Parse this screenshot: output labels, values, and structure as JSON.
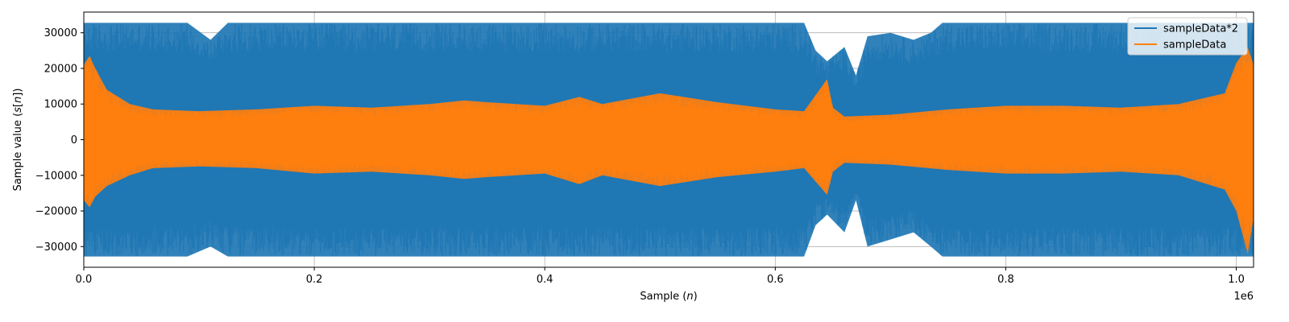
{
  "chart_data": {
    "type": "line",
    "title": "",
    "xlabel_parts": [
      "Sample (",
      "n",
      ")"
    ],
    "ylabel_parts": [
      "Sample value (",
      "s",
      "[",
      "n",
      "])"
    ],
    "x_offset_label": "1e6",
    "xlim": [
      0,
      1015000
    ],
    "ylim": [
      -35800,
      35800
    ],
    "x_ticks": [
      {
        "value": 0,
        "label": "0.0"
      },
      {
        "value": 200000,
        "label": "0.2"
      },
      {
        "value": 400000,
        "label": "0.4"
      },
      {
        "value": 600000,
        "label": "0.6"
      },
      {
        "value": 800000,
        "label": "0.8"
      },
      {
        "value": 1000000,
        "label": "1.0"
      }
    ],
    "y_ticks": [
      {
        "value": 30000,
        "label": "30000"
      },
      {
        "value": 20000,
        "label": "20000"
      },
      {
        "value": 10000,
        "label": "10000"
      },
      {
        "value": 0,
        "label": "0"
      },
      {
        "value": -10000,
        "label": "−10000"
      },
      {
        "value": -20000,
        "label": "−20000"
      },
      {
        "value": -30000,
        "label": "−30000"
      }
    ],
    "grid": true,
    "legend_position": "top-right",
    "series": [
      {
        "name": "sampleData*2",
        "color": "#1f77b4",
        "envelope": {
          "x": [
            0,
            20000,
            60000,
            90000,
            110000,
            125000,
            150000,
            200000,
            260000,
            300000,
            330000,
            370000,
            400000,
            450000,
            500000,
            550000,
            600000,
            625000,
            635000,
            645000,
            660000,
            670000,
            680000,
            700000,
            720000,
            735000,
            745000,
            760000,
            800000,
            850000,
            900000,
            950000,
            1000000,
            1015000
          ],
          "upper": [
            32767,
            32767,
            32767,
            32767,
            28000,
            32767,
            32767,
            32767,
            32767,
            32767,
            32767,
            32767,
            32767,
            32767,
            32767,
            32767,
            32767,
            32767,
            25000,
            22000,
            26000,
            18000,
            29000,
            30000,
            28000,
            30000,
            32767,
            32767,
            32767,
            32767,
            32767,
            32767,
            32767,
            32767
          ],
          "lower": [
            -32767,
            -32767,
            -32767,
            -32767,
            -30000,
            -32767,
            -32767,
            -32767,
            -32767,
            -32767,
            -32767,
            -32767,
            -32767,
            -32767,
            -32767,
            -32767,
            -32767,
            -32767,
            -24000,
            -21000,
            -26000,
            -17000,
            -30000,
            -28000,
            -26000,
            -30000,
            -32767,
            -32767,
            -32767,
            -32767,
            -32767,
            -32767,
            -32767,
            -32767
          ]
        }
      },
      {
        "name": "sampleData",
        "color": "#ff7f0e",
        "envelope": {
          "x": [
            0,
            5000,
            10000,
            20000,
            40000,
            60000,
            100000,
            150000,
            200000,
            250000,
            300000,
            330000,
            350000,
            400000,
            430000,
            450000,
            500000,
            550000,
            600000,
            625000,
            645000,
            650000,
            660000,
            700000,
            750000,
            800000,
            850000,
            900000,
            950000,
            990000,
            1000000,
            1010000,
            1015000
          ],
          "upper": [
            21000,
            23500,
            20000,
            14000,
            10000,
            8500,
            8000,
            8500,
            9500,
            9000,
            10000,
            11000,
            10500,
            9500,
            12000,
            10000,
            13000,
            10500,
            8500,
            8000,
            17000,
            9000,
            6500,
            7000,
            8500,
            9500,
            9500,
            9000,
            10000,
            13000,
            21500,
            26000,
            21000
          ],
          "lower": [
            -17000,
            -19000,
            -16000,
            -13000,
            -10000,
            -8000,
            -7500,
            -8000,
            -9500,
            -9000,
            -10000,
            -11000,
            -10500,
            -9500,
            -12500,
            -10000,
            -13000,
            -10500,
            -9000,
            -8000,
            -15500,
            -9000,
            -6500,
            -7000,
            -8500,
            -9500,
            -9500,
            -9000,
            -10000,
            -14000,
            -20000,
            -32000,
            -22000
          ]
        }
      }
    ]
  }
}
